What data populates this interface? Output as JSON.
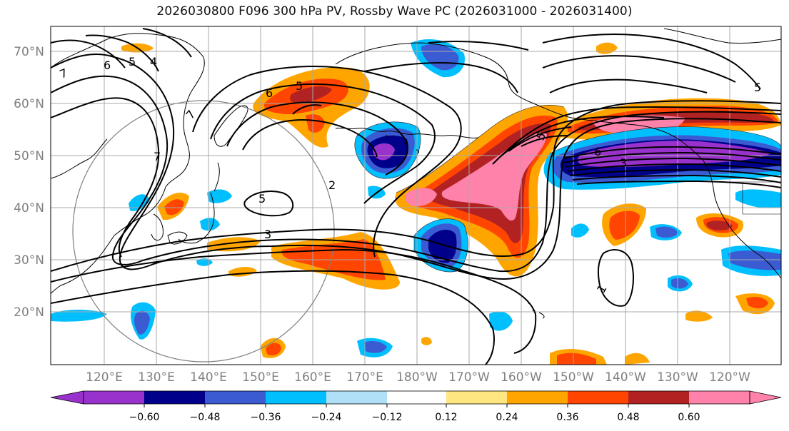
{
  "title": "2026030800 F096 300 hPa PV, Rossby Wave PC (2026031000 - 2026031400)",
  "lat_labels": [
    "70°N",
    "60°N",
    "50°N",
    "40°N",
    "30°N",
    "20°N"
  ],
  "lon_labels": [
    "120°E",
    "130°E",
    "140°E",
    "150°E",
    "160°E",
    "170°E",
    "180°W",
    "170°W",
    "160°W",
    "150°W",
    "140°W",
    "130°W",
    "120°W"
  ],
  "contour_labels": [
    "7",
    "6",
    "5",
    "4",
    "6",
    "5",
    "7",
    "7",
    "5",
    "2",
    "5",
    "3",
    "6",
    "3",
    "5",
    "1"
  ],
  "colorbar": {
    "tick_labels": [
      "−0.60",
      "−0.48",
      "−0.36",
      "−0.24",
      "−0.12",
      "0.12",
      "0.24",
      "0.36",
      "0.48",
      "0.60"
    ],
    "colors": [
      "#9932cc",
      "#00008b",
      "#3b5bd3",
      "#00bfff",
      "#b0e0f8",
      "#ffffff",
      "#ffe680",
      "#ffa500",
      "#ff4500",
      "#b22222",
      "#ff82ab",
      "#ff82ab"
    ]
  },
  "colors": {
    "pos_high": "#ff82ab",
    "pos_2": "#b22222",
    "pos_1": "#ff4500",
    "pos_0": "#ffa500",
    "pos_weak": "#ffe680",
    "neg_high": "#9932cc",
    "neg_2": "#00008b",
    "neg_1": "#3b5bd3",
    "neg_0": "#00bfff",
    "neg_weak": "#b0e0f8"
  }
}
